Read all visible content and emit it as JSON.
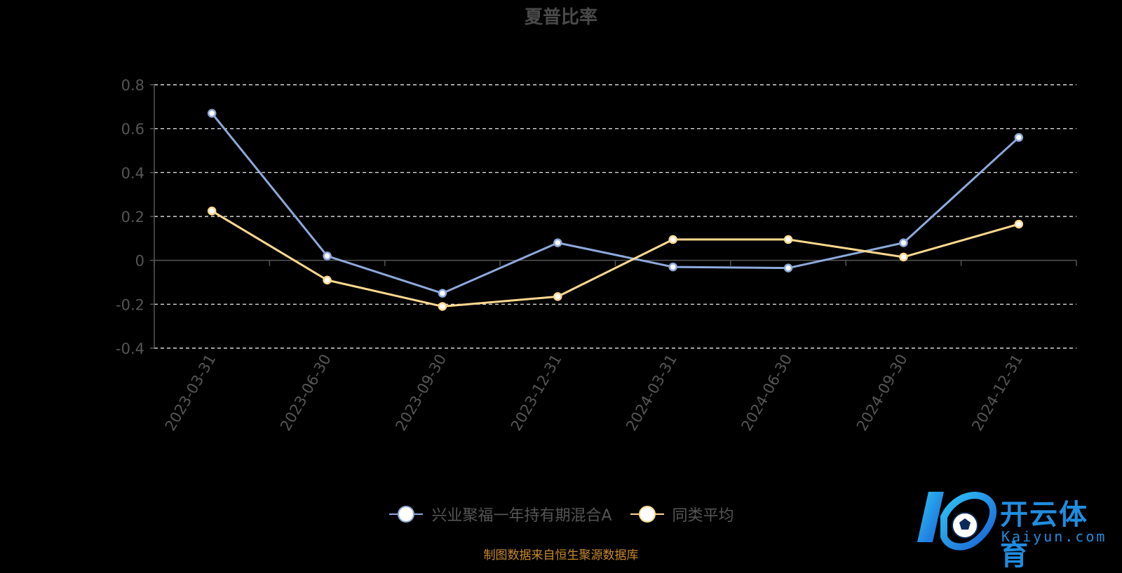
{
  "chart_data": {
    "type": "line",
    "title": "夏普比率",
    "categories": [
      "2023-03-31",
      "2023-06-30",
      "2023-09-30",
      "2023-12-31",
      "2024-03-31",
      "2024-06-30",
      "2024-09-30",
      "2024-12-31"
    ],
    "series": [
      {
        "name": "兴业聚福一年持有期混合A",
        "color": "#8ea9db",
        "values": [
          0.67,
          0.02,
          -0.15,
          0.08,
          -0.03,
          -0.035,
          0.08,
          0.56
        ]
      },
      {
        "name": "同类平均",
        "color": "#ffd98f",
        "values": [
          0.225,
          -0.09,
          -0.21,
          -0.165,
          0.095,
          0.095,
          0.015,
          0.165
        ]
      }
    ],
    "yticks": [
      0.8,
      0.6,
      0.4,
      0.2,
      0,
      -0.2,
      -0.4
    ],
    "ylim": [
      -0.4,
      0.8
    ],
    "grid": true,
    "legend_position": "bottom-center"
  },
  "source_note": "制图数据来自恒生聚源数据库",
  "watermark": {
    "name_cn": "开云体育",
    "name_en": "Kaiyun.com"
  }
}
